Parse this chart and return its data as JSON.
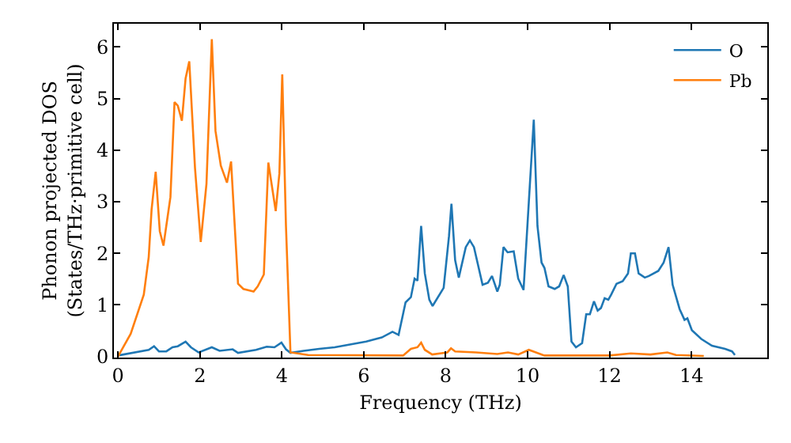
{
  "chart_data": {
    "type": "line",
    "xlabel": "Frequency (THz)",
    "ylabel": "Phonon projected DOS\n(States/THz·primitive cell)",
    "xlim": [
      -0.1,
      15.85
    ],
    "ylim": [
      -0.02,
      6.45
    ],
    "xticks": [
      0,
      2,
      4,
      6,
      8,
      10,
      12,
      14
    ],
    "yticks": [
      0,
      1,
      2,
      3,
      4,
      5,
      6
    ],
    "grid": false,
    "legend": "top right",
    "line_style": "solid",
    "marker": "none",
    "series": [
      {
        "name": "O",
        "color": "#1f77b4",
        "x": [
          0,
          0.75,
          0.88,
          1.0,
          1.18,
          1.33,
          1.46,
          1.65,
          1.78,
          1.97,
          2.29,
          2.48,
          2.8,
          2.93,
          3.37,
          3.63,
          3.82,
          3.99,
          4.1,
          4.21,
          4.53,
          4.91,
          5.29,
          6.06,
          6.44,
          6.7,
          6.85,
          7.02,
          7.15,
          7.24,
          7.31,
          7.4,
          7.49,
          7.6,
          7.68,
          7.95,
          8.08,
          8.14,
          8.23,
          8.32,
          8.49,
          8.59,
          8.69,
          8.9,
          9.03,
          9.13,
          9.26,
          9.32,
          9.41,
          9.51,
          9.66,
          9.77,
          9.9,
          10.15,
          10.24,
          10.34,
          10.41,
          10.51,
          10.66,
          10.77,
          10.88,
          10.98,
          11.07,
          11.18,
          11.33,
          11.43,
          11.52,
          11.62,
          11.71,
          11.79,
          11.88,
          11.97,
          12.04,
          12.17,
          12.32,
          12.45,
          12.52,
          12.62,
          12.71,
          12.86,
          12.96,
          13.19,
          13.32,
          13.44,
          13.54,
          13.71,
          13.83,
          13.9,
          14.01,
          14.24,
          14.5,
          14.82,
          14.99,
          15.06
        ],
        "values": [
          0.02,
          0.13,
          0.2,
          0.1,
          0.1,
          0.18,
          0.2,
          0.29,
          0.18,
          0.08,
          0.18,
          0.11,
          0.14,
          0.07,
          0.13,
          0.19,
          0.18,
          0.27,
          0.14,
          0.07,
          0.11,
          0.15,
          0.18,
          0.29,
          0.37,
          0.48,
          0.42,
          1.05,
          1.15,
          1.51,
          1.47,
          2.53,
          1.61,
          1.1,
          0.98,
          1.33,
          2.33,
          2.96,
          1.87,
          1.53,
          2.12,
          2.25,
          2.12,
          1.39,
          1.43,
          1.56,
          1.26,
          1.39,
          2.12,
          2.02,
          2.04,
          1.51,
          1.29,
          4.59,
          2.53,
          1.82,
          1.72,
          1.36,
          1.31,
          1.36,
          1.58,
          1.36,
          0.29,
          0.18,
          0.26,
          0.82,
          0.82,
          1.07,
          0.89,
          0.94,
          1.13,
          1.1,
          1.2,
          1.41,
          1.46,
          1.61,
          2.0,
          2.0,
          1.61,
          1.53,
          1.56,
          1.66,
          1.82,
          2.12,
          1.39,
          0.92,
          0.71,
          0.74,
          0.51,
          0.34,
          0.21,
          0.15,
          0.1,
          0.03
        ]
      },
      {
        "name": "Pb",
        "color": "#ff7f0e",
        "x": [
          0,
          0.31,
          0.63,
          0.75,
          0.82,
          0.92,
          1.02,
          1.11,
          1.28,
          1.38,
          1.46,
          1.56,
          1.65,
          1.74,
          1.88,
          2.02,
          2.16,
          2.29,
          2.38,
          2.51,
          2.66,
          2.76,
          2.93,
          3.06,
          3.31,
          3.41,
          3.56,
          3.67,
          3.85,
          3.94,
          4.01,
          4.1,
          4.21,
          4.64,
          6.96,
          7.15,
          7.31,
          7.4,
          7.49,
          7.67,
          8.04,
          8.13,
          8.23,
          8.74,
          9.26,
          9.52,
          9.77,
          10.03,
          10.41,
          12.0,
          12.52,
          13.0,
          13.41,
          13.62,
          14.3
        ],
        "values": [
          0,
          0.44,
          1.2,
          1.93,
          2.85,
          3.58,
          2.43,
          2.15,
          3.09,
          4.93,
          4.86,
          4.57,
          5.39,
          5.72,
          3.65,
          2.22,
          3.35,
          6.15,
          4.37,
          3.7,
          3.37,
          3.78,
          1.41,
          1.31,
          1.26,
          1.36,
          1.59,
          3.76,
          2.82,
          3.55,
          5.47,
          2.54,
          0.08,
          0.03,
          0.02,
          0.15,
          0.18,
          0.27,
          0.13,
          0.04,
          0.08,
          0.16,
          0.1,
          0.08,
          0.05,
          0.08,
          0.04,
          0.13,
          0.02,
          0.02,
          0.06,
          0.04,
          0.08,
          0.03,
          0.01
        ]
      }
    ]
  }
}
